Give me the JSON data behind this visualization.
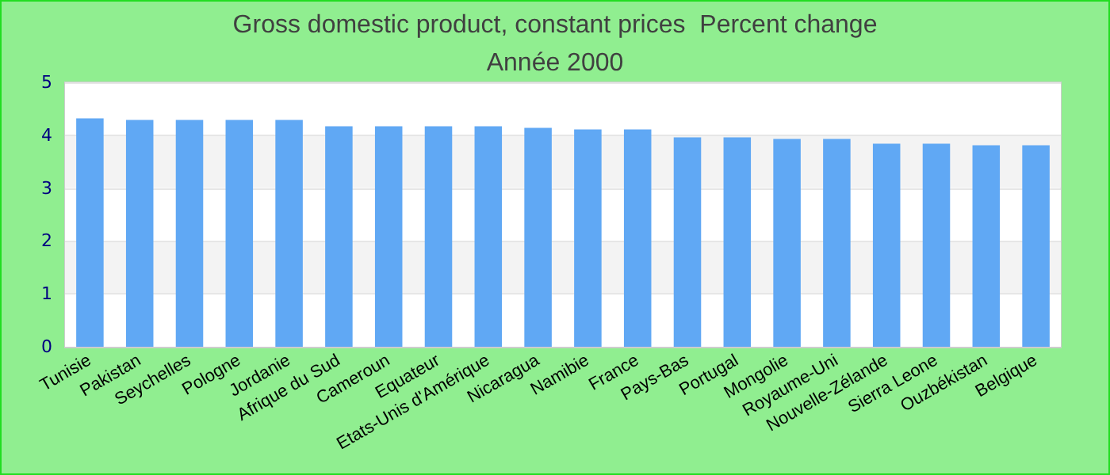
{
  "chart_data": {
    "type": "bar",
    "title": "Gross domestic product, constant prices  Percent change",
    "subtitle": "Année 2000",
    "categories": [
      "Tunisie",
      "Pakistan",
      "Seychelles",
      "Pologne",
      "Jordanie",
      "Afrique du Sud",
      "Cameroun",
      "Equateur",
      "Etats-Unis d'Amérique",
      "Nicaragua",
      "Namibie",
      "France",
      "Pays-Bas",
      "Portugal",
      "Mongolie",
      "Royaume-Uni",
      "Nouvelle-Zélande",
      "Sierra Leone",
      "Ouzbékistan",
      "Belgique"
    ],
    "values": [
      4.32,
      4.29,
      4.29,
      4.29,
      4.29,
      4.17,
      4.17,
      4.17,
      4.17,
      4.14,
      4.11,
      4.11,
      3.96,
      3.96,
      3.93,
      3.93,
      3.84,
      3.84,
      3.81,
      3.81
    ],
    "color": "#60a8f4",
    "ylim": [
      0,
      5
    ],
    "yticks": [
      0,
      1,
      2,
      3,
      4,
      5
    ],
    "grid": "y"
  }
}
